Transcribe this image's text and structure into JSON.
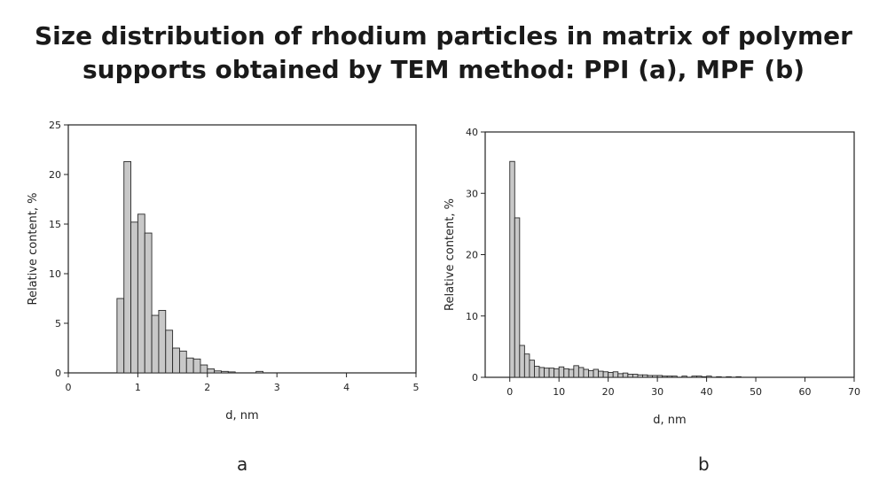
{
  "title_lines": [
    "Size distribution of rhodium particles in matrix of polymer",
    "supports obtained by TEM method: PPI (a), MPF (b)"
  ],
  "captions": {
    "a": "a",
    "b": "b"
  },
  "chart_data": [
    {
      "type": "bar",
      "label": "a",
      "xlabel": "d, nm",
      "ylabel": "Relative content, %",
      "xlim": [
        0,
        5
      ],
      "ylim": [
        0,
        25
      ],
      "xticks": [
        0,
        1,
        2,
        3,
        4,
        5
      ],
      "yticks": [
        0,
        5,
        10,
        15,
        20,
        25
      ],
      "bin_width": 0.1,
      "bin_starts": [
        0.7,
        0.8,
        0.9,
        1.0,
        1.1,
        1.2,
        1.3,
        1.4,
        1.5,
        1.6,
        1.7,
        1.8,
        1.9,
        2.0,
        2.1,
        2.2,
        2.3,
        2.7
      ],
      "values": [
        7.5,
        21.3,
        15.2,
        16.0,
        14.1,
        5.8,
        6.3,
        4.3,
        2.5,
        2.2,
        1.5,
        1.4,
        0.8,
        0.4,
        0.2,
        0.15,
        0.1,
        0.15
      ],
      "grid": false,
      "legend": "none"
    },
    {
      "type": "bar",
      "label": "b",
      "xlabel": "d, nm",
      "ylabel": "Relative content, %",
      "xlim": [
        -5,
        70
      ],
      "ylim": [
        0,
        40
      ],
      "xticks": [
        0,
        10,
        20,
        30,
        40,
        50,
        60,
        70
      ],
      "yticks": [
        0,
        10,
        20,
        30,
        40
      ],
      "bin_width": 1,
      "bin_starts": [
        0,
        1,
        2,
        3,
        4,
        5,
        6,
        7,
        8,
        9,
        10,
        11,
        12,
        13,
        14,
        15,
        16,
        17,
        18,
        19,
        20,
        21,
        22,
        23,
        24,
        25,
        26,
        27,
        28,
        29,
        30,
        31,
        32,
        33,
        35,
        37,
        38,
        39,
        40,
        42,
        44,
        46
      ],
      "values": [
        35.2,
        26.0,
        5.2,
        3.8,
        2.8,
        1.8,
        1.6,
        1.5,
        1.5,
        1.4,
        1.7,
        1.4,
        1.3,
        1.9,
        1.6,
        1.3,
        1.1,
        1.3,
        1.0,
        0.9,
        0.8,
        0.9,
        0.6,
        0.7,
        0.5,
        0.5,
        0.4,
        0.4,
        0.3,
        0.3,
        0.3,
        0.2,
        0.2,
        0.2,
        0.2,
        0.2,
        0.2,
        0.1,
        0.2,
        0.1,
        0.1,
        0.1
      ],
      "grid": false,
      "legend": "none"
    }
  ]
}
